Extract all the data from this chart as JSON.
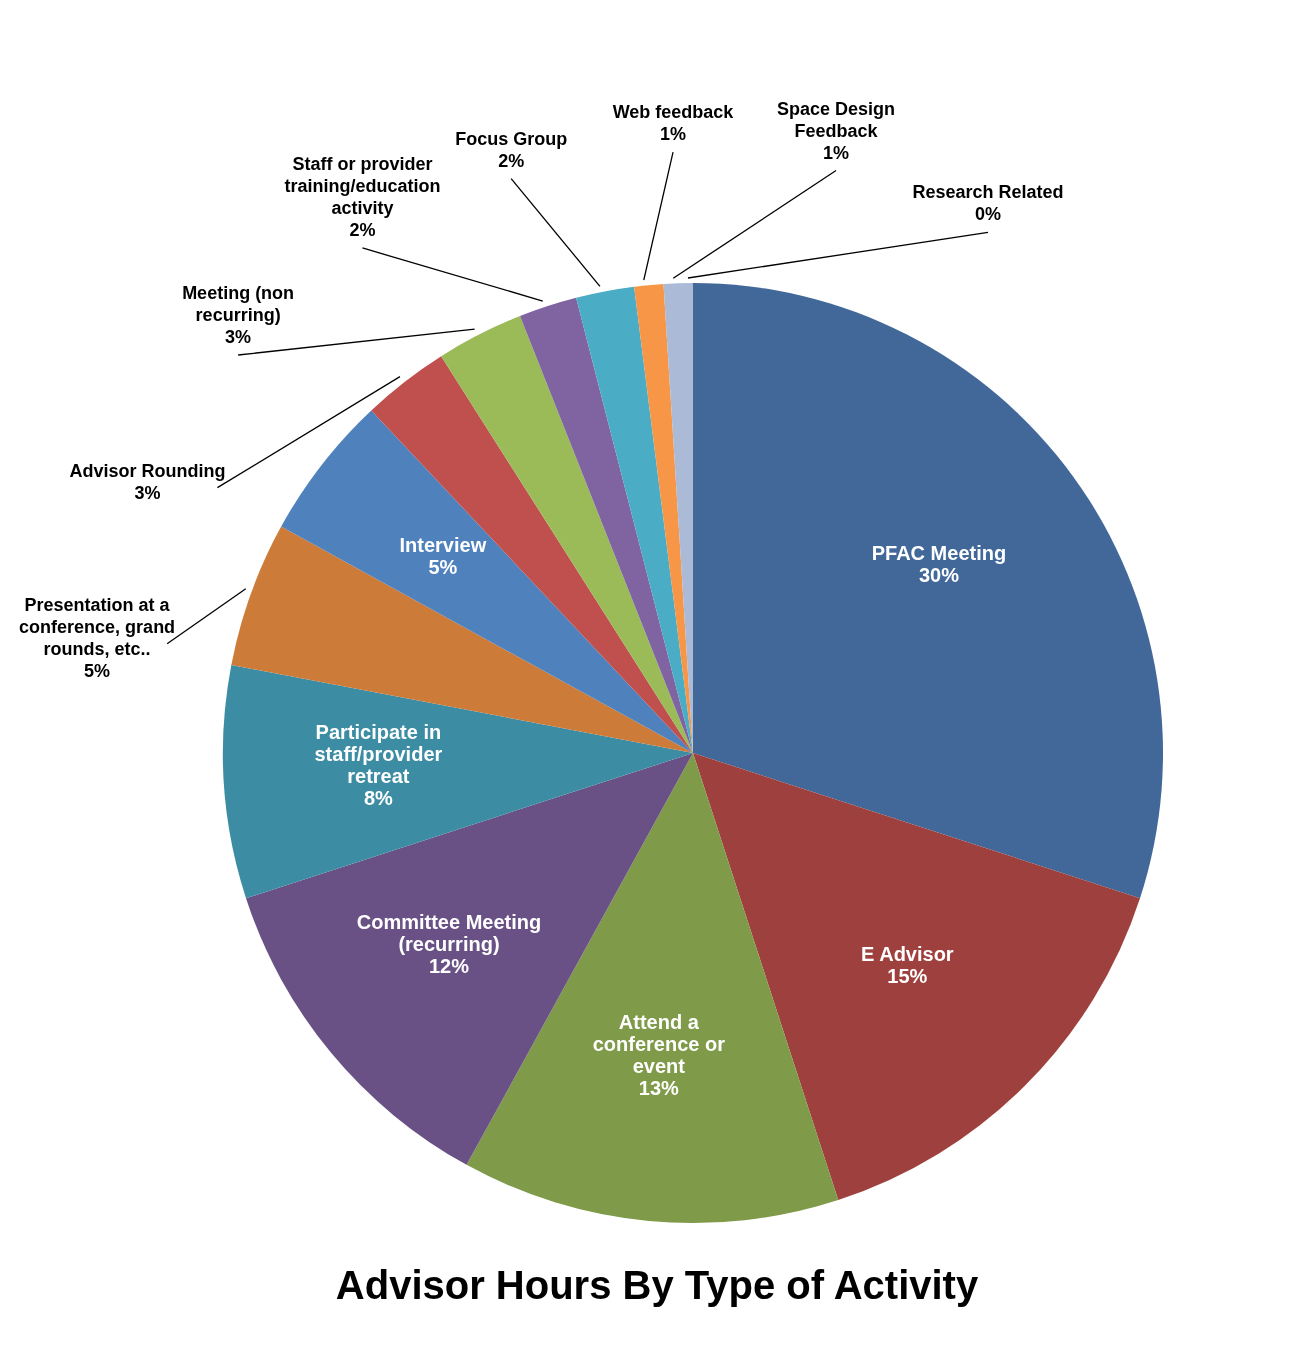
{
  "chart_data": {
    "type": "pie",
    "title": "Advisor Hours By Type of Activity",
    "categories": [
      "PFAC Meeting",
      "E Advisor",
      "Attend a conference or event",
      "Committee Meeting (recurring)",
      "Participate in staff/provider retreat",
      "Presentation at a conference, grand rounds, etc..",
      "Interview",
      "Advisor Rounding",
      "Meeting (non recurring)",
      "Staff or provider training/education activity",
      "Focus Group",
      "Web feedback",
      "Space Design Feedback",
      "Research Related"
    ],
    "values": [
      30,
      15,
      13,
      12,
      8,
      5,
      5,
      3,
      3,
      2,
      2,
      1,
      1,
      0
    ],
    "value_labels": [
      "30%",
      "15%",
      "13%",
      "12%",
      "8%",
      "5%",
      "5%",
      "3%",
      "3%",
      "2%",
      "2%",
      "1%",
      "1%",
      "0%"
    ],
    "colors": [
      "#416899",
      "#9e413e",
      "#7f9a48",
      "#695185",
      "#3c8da3",
      "#cc7b38",
      "#4f81bd",
      "#c0504d",
      "#9bbb59",
      "#8064a2",
      "#4bacc6",
      "#f79646",
      "#aabad7",
      "#d9a9a9"
    ],
    "legend": false
  }
}
